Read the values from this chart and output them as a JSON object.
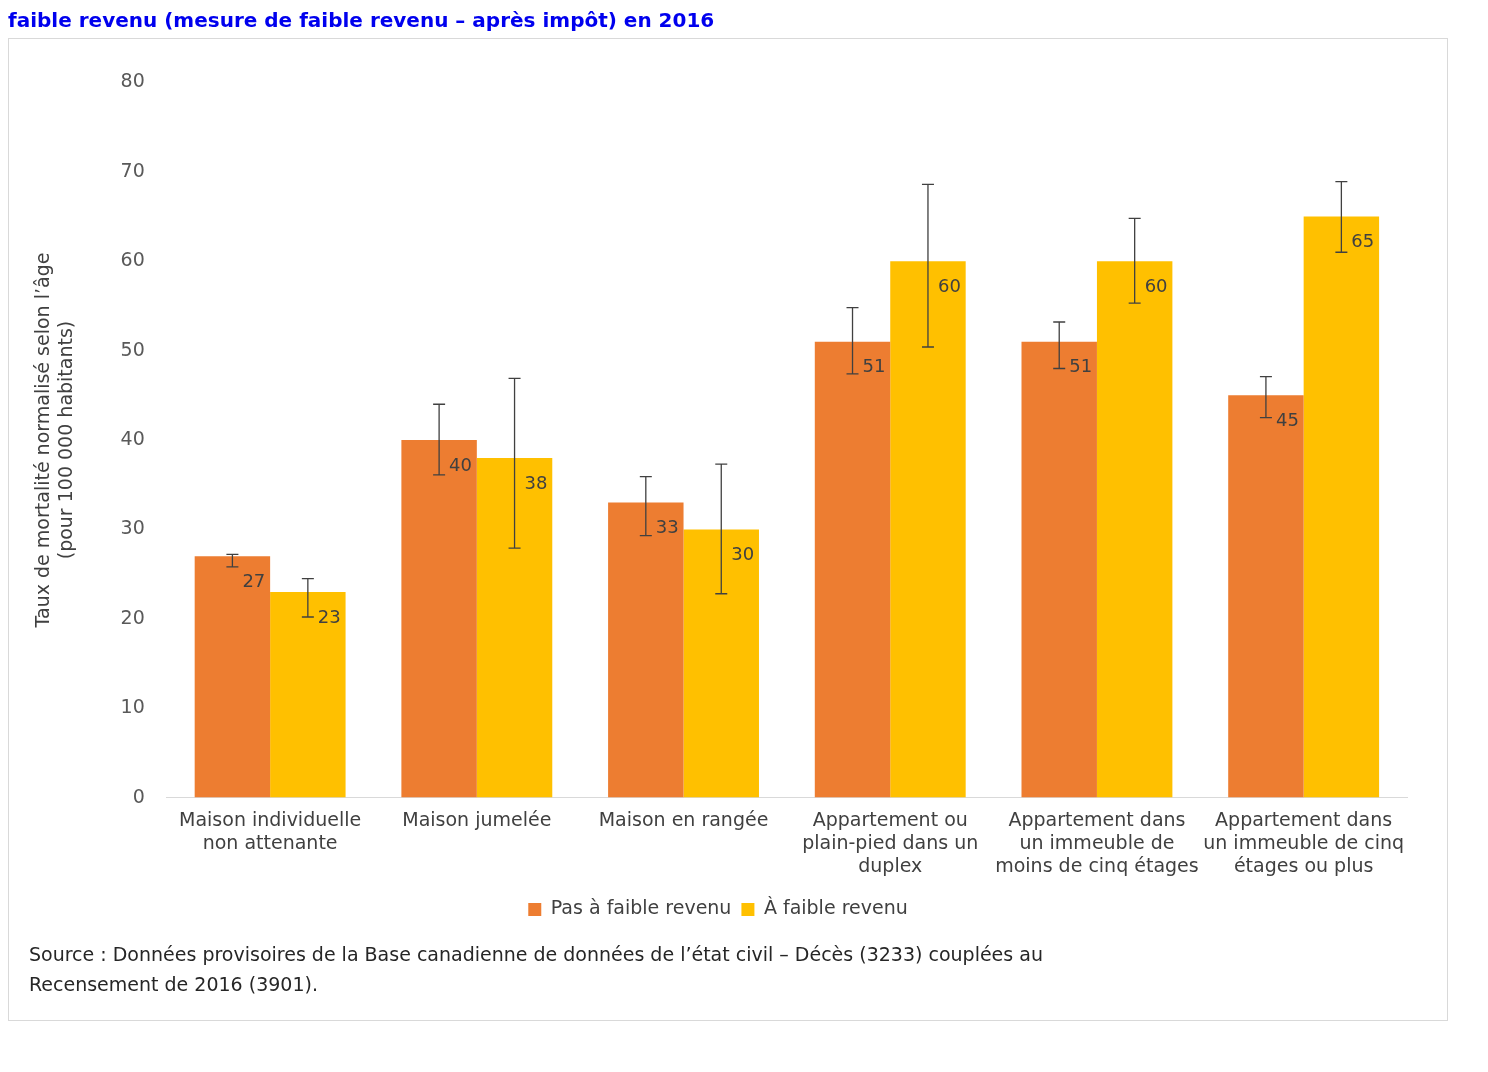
{
  "chart_data": {
    "type": "bar",
    "title": "faible revenu (mesure de faible revenu – après impôt) en 2016",
    "ylabel": "Taux de mortalité normalisé selon l’âge\n(pour 100 000 habitants)",
    "categories": [
      "Maison individuelle\nnon attenante",
      "Maison jumelée",
      "Maison en rangée",
      "Appartement ou\nplain-pied dans un\nduplex",
      "Appartement dans\nun immeuble de\nmoins de cinq étages",
      "Appartement dans\nun immeuble de cinq\nétages ou plus"
    ],
    "series": [
      {
        "name": "Pas à faible revenu",
        "color": "#ed7d31",
        "values": [
          27,
          40,
          33,
          51,
          51,
          45
        ],
        "errors": [
          [
            25.8,
            27.2
          ],
          [
            36.1,
            44.0
          ],
          [
            29.3,
            35.9
          ],
          [
            47.4,
            54.8
          ],
          [
            48.0,
            53.2
          ],
          [
            42.5,
            47.1
          ]
        ]
      },
      {
        "name": "À faible revenu",
        "color": "#ffc000",
        "values": [
          23,
          38,
          30,
          60,
          60,
          65
        ],
        "errors": [
          [
            20.2,
            24.5
          ],
          [
            27.9,
            46.9
          ],
          [
            22.8,
            37.3
          ],
          [
            50.4,
            68.6
          ],
          [
            55.3,
            64.8
          ],
          [
            61.0,
            68.9
          ]
        ]
      }
    ],
    "ylim": [
      0,
      80
    ],
    "yticks": [
      0,
      10,
      20,
      30,
      40,
      50,
      60,
      70,
      80
    ],
    "grid": false,
    "legend": "bottom",
    "data_labels": true,
    "annotations": [
      "Source : Données provisoires de la Base canadienne de données de l’état civil – Décès (3233) couplées au Recensement de 2016 (3901)."
    ]
  }
}
